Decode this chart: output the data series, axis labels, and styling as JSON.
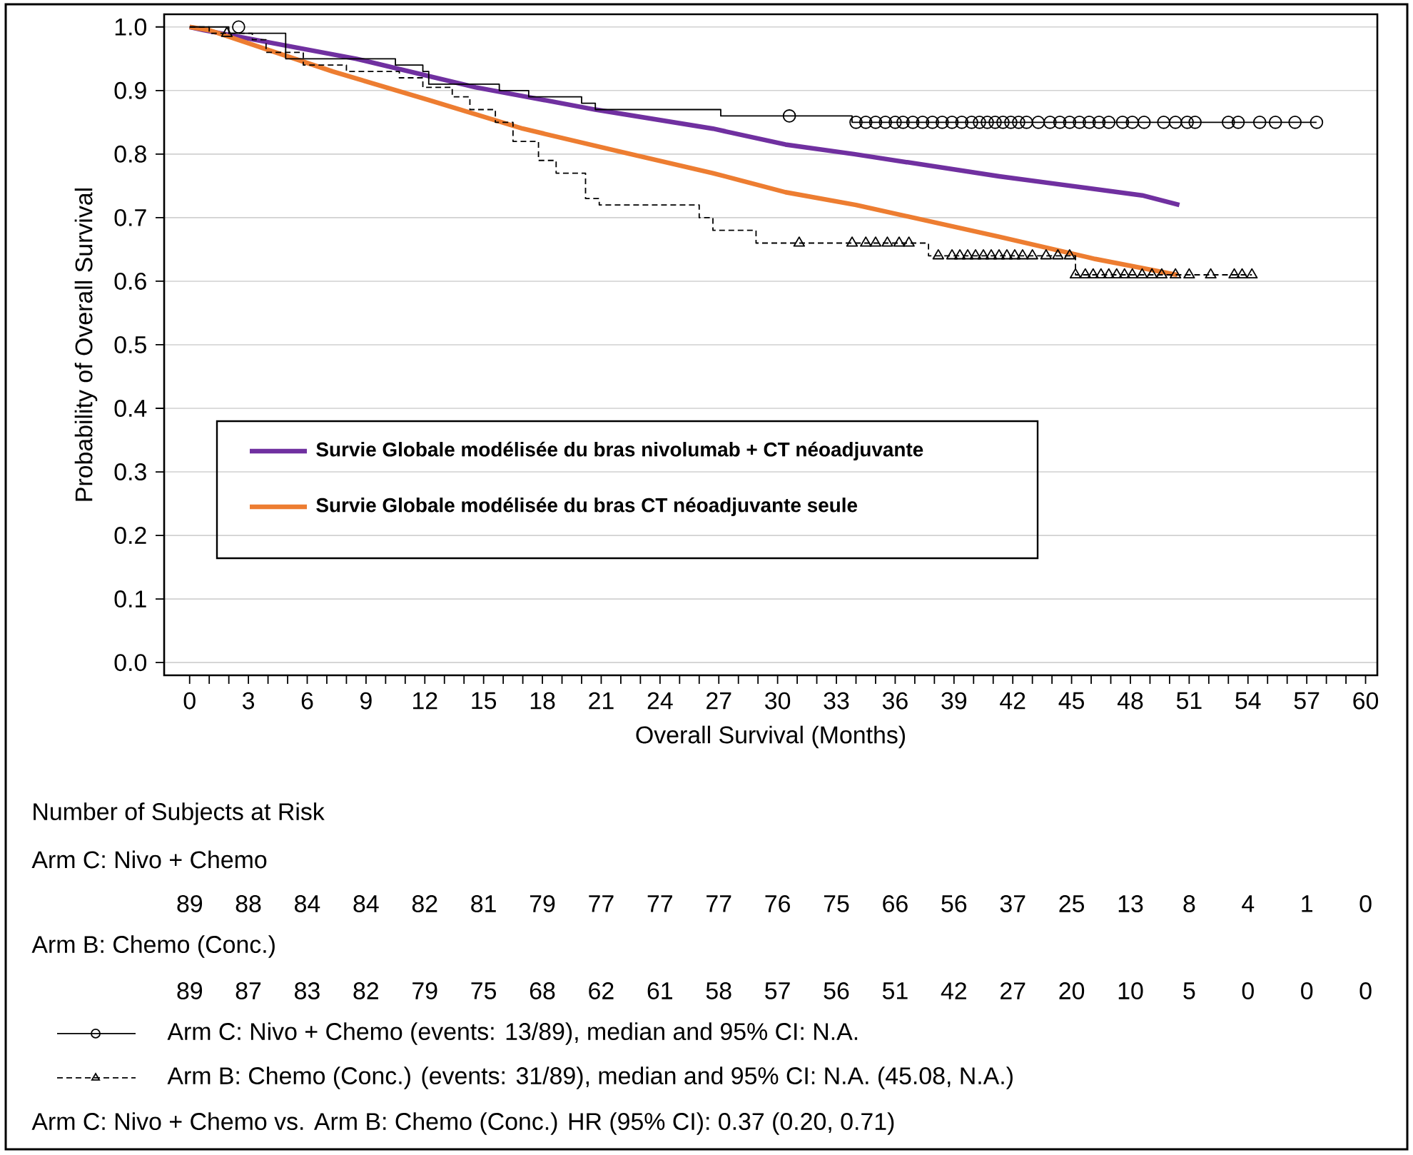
{
  "chart_data": {
    "type": "step",
    "xlabel": "Overall Survival (Months)",
    "ylabel": "Probability of Overall Survival",
    "xlim": [
      -1.3,
      60.6
    ],
    "ylim": [
      -0.02,
      1.02
    ],
    "xticks": [
      0,
      {
        "value": 1,
        "label": null
      },
      {
        "value": 2,
        "label": null
      },
      3,
      {
        "value": 4,
        "label": null
      },
      {
        "value": 5,
        "label": null
      },
      6,
      {
        "value": 7,
        "label": null
      },
      {
        "value": 8,
        "label": null
      },
      9,
      {
        "value": 10,
        "label": null
      },
      {
        "value": 11,
        "label": null
      },
      12,
      {
        "value": 13,
        "label": null
      },
      {
        "value": 14,
        "label": null
      },
      15,
      {
        "value": 16,
        "label": null
      },
      {
        "value": 17,
        "label": null
      },
      18,
      {
        "value": 19,
        "label": null
      },
      {
        "value": 20,
        "label": null
      },
      21,
      {
        "value": 22,
        "label": null
      },
      {
        "value": 23,
        "label": null
      },
      24,
      {
        "value": 25,
        "label": null
      },
      {
        "value": 26,
        "label": null
      },
      27,
      {
        "value": 28,
        "label": null
      },
      {
        "value": 29,
        "label": null
      },
      30,
      {
        "value": 31,
        "label": null
      },
      {
        "value": 32,
        "label": null
      },
      33,
      {
        "value": 34,
        "label": null
      },
      {
        "value": 35,
        "label": null
      },
      36,
      {
        "value": 37,
        "label": null
      },
      {
        "value": 38,
        "label": null
      },
      39,
      {
        "value": 40,
        "label": null
      },
      {
        "value": 41,
        "label": null
      },
      42,
      {
        "value": 43,
        "label": null
      },
      {
        "value": 44,
        "label": null
      },
      45,
      {
        "value": 46,
        "label": null
      },
      {
        "value": 47,
        "label": null
      },
      48,
      {
        "value": 49,
        "label": null
      },
      {
        "value": 50,
        "label": null
      },
      51,
      {
        "value": 52,
        "label": null
      },
      {
        "value": 53,
        "label": null
      },
      54,
      {
        "value": 55,
        "label": null
      },
      {
        "value": 56,
        "label": null
      },
      57,
      {
        "value": 58,
        "label": null
      },
      {
        "value": 59,
        "label": null
      },
      60
    ],
    "yticks": [
      {
        "value": 0,
        "label": "0.0"
      },
      {
        "value": 0.1,
        "label": "0.1"
      },
      {
        "value": 0.2,
        "label": "0.2"
      },
      {
        "value": 0.3,
        "label": "0.3"
      },
      {
        "value": 0.4,
        "label": "0.4"
      },
      {
        "value": 0.5,
        "label": "0.5"
      },
      {
        "value": 0.6,
        "label": "0.6"
      },
      {
        "value": 0.7,
        "label": "0.7"
      },
      {
        "value": 0.8,
        "label": "0.8"
      },
      {
        "value": 0.9,
        "label": "0.9"
      },
      {
        "value": 1,
        "label": "1.0"
      }
    ],
    "grid": "y",
    "legend": "left",
    "series": [
      {
        "name": "Arm C: Nivo + Chemo (events: 13/89), median and 95% CI: N.A.",
        "color": "#000000",
        "line_style": "solid",
        "x": [
          0,
          2.0,
          4.9,
          10.5,
          11.9,
          12.2,
          15.8,
          17.3,
          20.0,
          20.7,
          27.1,
          33.8,
          57.5
        ],
        "values": [
          1.0,
          0.99,
          0.95,
          0.94,
          0.93,
          0.91,
          0.9,
          0.89,
          0.88,
          0.87,
          0.86,
          0.85,
          0.85
        ]
      },
      {
        "type": "scatter",
        "color": "#000000",
        "marker": "circle",
        "x": [
          2.5,
          30.6,
          34.0,
          34.5,
          35.0,
          35.5,
          36.0,
          36.4,
          36.9,
          37.4,
          37.9,
          38.4,
          38.9,
          39.4,
          39.9,
          40.3,
          40.7,
          41.1,
          41.5,
          41.9,
          42.3,
          42.7,
          43.3,
          43.9,
          44.4,
          44.9,
          45.4,
          45.9,
          46.4,
          46.9,
          47.6,
          48.1,
          48.7,
          49.7,
          50.3,
          50.9,
          51.3,
          53.0,
          53.5,
          54.6,
          55.4,
          56.4,
          57.5
        ],
        "values": [
          1.0,
          0.86,
          0.85,
          0.85,
          0.85,
          0.85,
          0.85,
          0.85,
          0.85,
          0.85,
          0.85,
          0.85,
          0.85,
          0.85,
          0.85,
          0.85,
          0.85,
          0.85,
          0.85,
          0.85,
          0.85,
          0.85,
          0.85,
          0.85,
          0.85,
          0.85,
          0.85,
          0.85,
          0.85,
          0.85,
          0.85,
          0.85,
          0.85,
          0.85,
          0.85,
          0.85,
          0.85,
          0.85,
          0.85,
          0.85,
          0.85,
          0.85,
          0.85
        ]
      },
      {
        "name": "Arm B: Chemo (Conc.) (events: 31/89), median and 95% CI: N.A. (45.08, N.A.)",
        "color": "#000000",
        "line_style": "dashed",
        "x": [
          0,
          1.0,
          3.2,
          3.9,
          5.8,
          8.0,
          10.7,
          11.9,
          13.4,
          14.3,
          15.6,
          16.5,
          17.8,
          18.7,
          20.2,
          20.9,
          26.0,
          26.7,
          28.9,
          37.7,
          45.2,
          54.2
        ],
        "values": [
          1.0,
          0.99,
          0.98,
          0.96,
          0.94,
          0.93,
          0.92,
          0.905,
          0.89,
          0.87,
          0.85,
          0.82,
          0.79,
          0.77,
          0.73,
          0.72,
          0.7,
          0.68,
          0.66,
          0.64,
          0.61,
          0.61
        ]
      },
      {
        "type": "scatter",
        "color": "#000000",
        "marker": "triangle",
        "x": [
          1.9,
          31.1,
          33.8,
          34.5,
          35.0,
          35.6,
          36.2,
          36.7,
          38.2,
          38.9,
          39.3,
          39.7,
          40.1,
          40.5,
          40.9,
          41.3,
          41.7,
          42.1,
          42.5,
          43.0,
          43.7,
          44.3,
          44.9,
          45.2,
          45.7,
          46.1,
          46.5,
          46.9,
          47.3,
          47.7,
          48.1,
          48.6,
          49.1,
          49.6,
          50.3,
          51.0,
          52.1,
          53.3,
          53.7,
          54.2
        ],
        "values": [
          0.99,
          0.66,
          0.66,
          0.66,
          0.66,
          0.66,
          0.66,
          0.66,
          0.64,
          0.64,
          0.64,
          0.64,
          0.64,
          0.64,
          0.64,
          0.64,
          0.64,
          0.64,
          0.64,
          0.64,
          0.64,
          0.64,
          0.64,
          0.61,
          0.61,
          0.61,
          0.61,
          0.61,
          0.61,
          0.61,
          0.61,
          0.61,
          0.61,
          0.61,
          0.61,
          0.61,
          0.61,
          0.61,
          0.61,
          0.61
        ]
      },
      {
        "name": "Survie Globale modélisée du bras nivolumab + CT néoadjuvante",
        "type": "line",
        "color": "#7030a0",
        "line_style": "solid",
        "x": [
          0,
          0.7,
          8.5,
          14.6,
          20.7,
          26.7,
          30.4,
          33.9,
          41.3,
          48.6,
          50.5
        ],
        "values": [
          1.0,
          0.995,
          0.95,
          0.905,
          0.87,
          0.84,
          0.815,
          0.8,
          0.765,
          0.735,
          0.72
        ]
      },
      {
        "name": "Survie Globale modélisée du bras CT néoadjuvante seule",
        "type": "line",
        "color": "#ed7d31",
        "line_style": "solid",
        "x": [
          0,
          1.0,
          7.3,
          12.2,
          17.0,
          21.8,
          26.7,
          30.4,
          34.0,
          41.3,
          46.2,
          50.4
        ],
        "values": [
          1.0,
          0.995,
          0.93,
          0.885,
          0.84,
          0.805,
          0.77,
          0.74,
          0.72,
          0.67,
          0.635,
          0.61
        ]
      }
    ],
    "annotations": [
      "Number of Subjects at Risk",
      "Arm C: Nivo + Chemo",
      "89",
      "88",
      "84",
      "84",
      "82",
      "81",
      "79",
      "77",
      "77",
      "77",
      "76",
      "75",
      "66",
      "56",
      "37",
      "25",
      "13",
      "8",
      "4",
      "1",
      "0",
      "Arm B: Chemo (Conc.)",
      "89",
      "87",
      "83",
      "82",
      "79",
      "75",
      "68",
      "62",
      "61",
      "58",
      "57",
      "56",
      "51",
      "42",
      "27",
      "20",
      "10",
      "5",
      "0",
      "0",
      "0",
      "Arm C: Nivo + Chemo vs. Arm B: Chemo (Conc.) HR (95% CI): 0.37 (0.20, 0.71)"
    ]
  }
}
